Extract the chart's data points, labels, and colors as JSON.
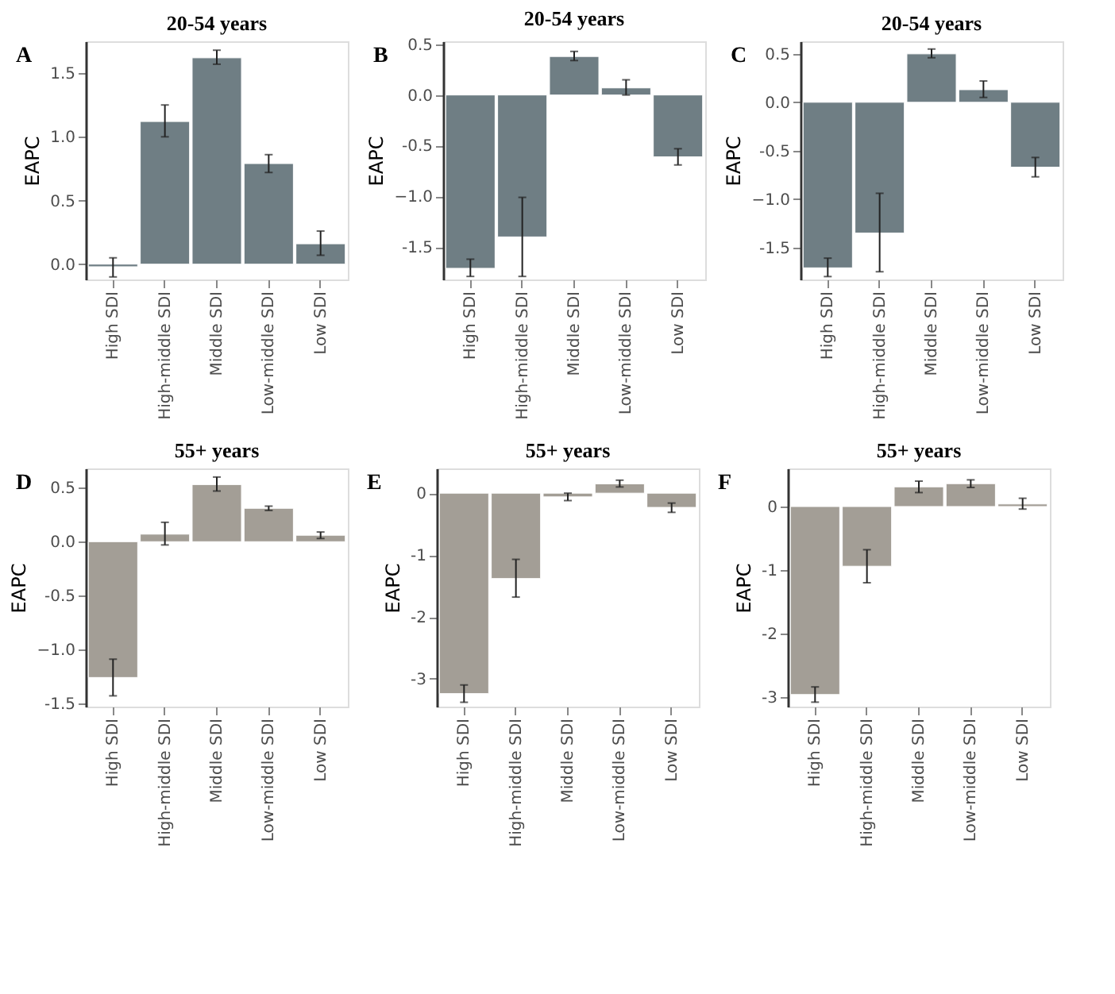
{
  "chart_data": [
    {
      "type": "bar",
      "title": "20-54 years",
      "ylabel": "EAPC",
      "annotations": [
        "A"
      ],
      "categories": [
        "High SDI",
        "High-middle SDI",
        "Middle SDI",
        "Low-middle SDI",
        "Low SDI"
      ],
      "values": [
        -0.02,
        1.12,
        1.62,
        0.79,
        0.16
      ],
      "errors": [
        [
          -0.1,
          0.05
        ],
        [
          1.0,
          1.25
        ],
        [
          1.57,
          1.68
        ],
        [
          0.72,
          0.86
        ],
        [
          0.07,
          0.26
        ]
      ],
      "color": "#6f7e84",
      "ylim": [
        -0.12,
        1.75
      ],
      "yticks": [
        {
          "value": 0,
          "label": "0.0"
        },
        0.5,
        {
          "value": 1,
          "label": "1.0"
        },
        1.5
      ],
      "grid": false
    },
    {
      "type": "bar",
      "title": "20-54 years",
      "ylabel": "EAPC",
      "annotations": [
        "B"
      ],
      "categories": [
        "High SDI",
        "High-middle SDI",
        "Middle SDI",
        "Low-middle SDI",
        "Low SDI"
      ],
      "values": [
        -1.71,
        -1.4,
        0.38,
        0.07,
        -0.61
      ],
      "errors": [
        [
          -1.79,
          -1.62
        ],
        [
          -1.79,
          -1.01
        ],
        [
          0.34,
          0.43
        ],
        [
          0.0,
          0.15
        ],
        [
          -0.69,
          -0.53
        ]
      ],
      "color": "#6f7e84",
      "ylim": [
        -1.82,
        0.53
      ],
      "yticks": [
        -1.5,
        {
          "value": -1,
          "label": "−1.0"
        },
        -0.5,
        {
          "value": 0,
          "label": "0.0"
        },
        0.5
      ],
      "grid": false
    },
    {
      "type": "bar",
      "title": "20-54 years",
      "ylabel": "EAPC",
      "annotations": [
        "C"
      ],
      "categories": [
        "High SDI",
        "High-middle SDI",
        "Middle SDI",
        "Low-middle SDI",
        "Low SDI"
      ],
      "values": [
        -1.71,
        -1.35,
        0.5,
        0.13,
        -0.67
      ],
      "errors": [
        [
          -1.8,
          -1.61
        ],
        [
          -1.75,
          -0.94
        ],
        [
          0.46,
          0.55
        ],
        [
          0.05,
          0.22
        ],
        [
          -0.77,
          -0.57
        ]
      ],
      "color": "#6f7e84",
      "ylim": [
        -1.83,
        0.63
      ],
      "yticks": [
        -1.5,
        {
          "value": -1,
          "label": "−1.0"
        },
        -0.5,
        {
          "value": 0,
          "label": "0.0"
        },
        0.5
      ],
      "grid": false
    },
    {
      "type": "bar",
      "title": "55+ years",
      "ylabel": "EAPC",
      "annotations": [
        "D"
      ],
      "categories": [
        "High SDI",
        "High-middle SDI",
        "Middle SDI",
        "Low-middle SDI",
        "Low SDI"
      ],
      "values": [
        -1.26,
        0.07,
        0.53,
        0.31,
        0.06
      ],
      "errors": [
        [
          -1.43,
          -1.09
        ],
        [
          -0.03,
          0.18
        ],
        [
          0.47,
          0.6
        ],
        [
          0.29,
          0.33
        ],
        [
          0.03,
          0.09
        ]
      ],
      "color": "#a39e96",
      "ylim": [
        -1.53,
        0.68
      ],
      "yticks": [
        -1.5,
        {
          "value": -1,
          "label": "−1.0"
        },
        -0.5,
        {
          "value": 0,
          "label": "0.0"
        },
        0.5
      ],
      "grid": false
    },
    {
      "type": "bar",
      "title": "55+ years",
      "ylabel": "EAPC",
      "annotations": [
        "E"
      ],
      "categories": [
        "High SDI",
        "High-middle SDI",
        "Middle SDI",
        "Low-middle SDI",
        "Low SDI"
      ],
      "values": [
        -3.24,
        -1.38,
        -0.06,
        0.15,
        -0.23
      ],
      "errors": [
        [
          -3.38,
          -3.1
        ],
        [
          -1.68,
          -1.07
        ],
        [
          -0.12,
          0.0
        ],
        [
          0.1,
          0.21
        ],
        [
          -0.31,
          -0.16
        ]
      ],
      "color": "#a39e96",
      "ylim": [
        -3.45,
        0.4
      ],
      "yticks": [
        -3,
        -2,
        -1,
        0
      ],
      "grid": false
    },
    {
      "type": "bar",
      "title": "55+ years",
      "ylabel": "EAPC",
      "annotations": [
        "F"
      ],
      "categories": [
        "High SDI",
        "High-middle SDI",
        "Middle SDI",
        "Low-middle SDI",
        "Low SDI"
      ],
      "values": [
        -2.96,
        -0.94,
        0.31,
        0.36,
        0.04
      ],
      "errors": [
        [
          -3.08,
          -2.84
        ],
        [
          -1.2,
          -0.68
        ],
        [
          0.22,
          0.4
        ],
        [
          0.3,
          0.42
        ],
        [
          -0.04,
          0.13
        ]
      ],
      "color": "#a39e96",
      "ylim": [
        -3.15,
        0.6
      ],
      "yticks": [
        -3,
        -2,
        -1,
        0
      ],
      "grid": false
    }
  ]
}
